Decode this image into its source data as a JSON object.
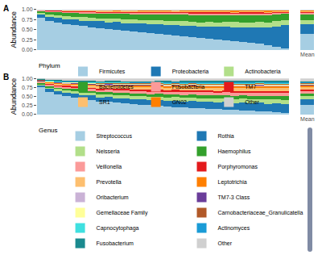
{
  "chart_data": [
    {
      "type": "bar",
      "stacked": true,
      "grid": false,
      "panel_label": "A",
      "y_label": "Abundance",
      "legend_title": "Phylum",
      "categories": [
        null,
        null,
        null,
        null,
        null,
        null,
        null,
        null,
        null,
        null,
        null,
        null,
        null,
        null,
        null,
        null,
        null,
        null,
        null,
        null,
        null,
        null,
        null,
        null,
        null,
        null,
        null,
        null,
        null,
        null,
        "Mean"
      ],
      "ylim": [
        0,
        1
      ],
      "yticks": [
        {
          "value": 0,
          "label": "0.00"
        },
        {
          "value": 0.25,
          "label": "0.25"
        },
        {
          "value": 0.5,
          "label": "0.50"
        },
        {
          "value": 0.75,
          "label": "0.75"
        },
        {
          "value": 1,
          "label": "1.00"
        }
      ],
      "series": [
        {
          "name": "Firmicutes",
          "color": "#a6cee3",
          "values": [
            0.8,
            0.72,
            0.68,
            0.65,
            0.62,
            0.6,
            0.57,
            0.55,
            0.53,
            0.51,
            0.49,
            0.47,
            0.45,
            0.43,
            0.41,
            0.39,
            0.37,
            0.35,
            0.33,
            0.31,
            0.29,
            0.27,
            0.25,
            0.23,
            0.21,
            0.19,
            0.16,
            0.13,
            0.09,
            0.04,
            0.4
          ]
        },
        {
          "name": "Proteobacteria",
          "color": "#1f78b4",
          "values": [
            0.08,
            0.1,
            0.12,
            0.11,
            0.14,
            0.13,
            0.15,
            0.17,
            0.16,
            0.19,
            0.18,
            0.2,
            0.22,
            0.21,
            0.24,
            0.23,
            0.26,
            0.25,
            0.28,
            0.27,
            0.3,
            0.31,
            0.33,
            0.34,
            0.36,
            0.38,
            0.41,
            0.44,
            0.5,
            0.58,
            0.25
          ]
        },
        {
          "name": "Actinobacteria",
          "color": "#b2df8a",
          "values": [
            0.05,
            0.06,
            0.07,
            0.08,
            0.07,
            0.09,
            0.08,
            0.07,
            0.09,
            0.08,
            0.1,
            0.09,
            0.08,
            0.1,
            0.09,
            0.11,
            0.1,
            0.12,
            0.1,
            0.11,
            0.12,
            0.11,
            0.12,
            0.13,
            0.11,
            0.12,
            0.13,
            0.12,
            0.14,
            0.13,
            0.1
          ]
        },
        {
          "name": "Bacteroidetes",
          "color": "#33a02c",
          "values": [
            0.04,
            0.07,
            0.08,
            0.09,
            0.1,
            0.1,
            0.11,
            0.12,
            0.12,
            0.12,
            0.13,
            0.13,
            0.14,
            0.14,
            0.15,
            0.15,
            0.15,
            0.16,
            0.16,
            0.17,
            0.16,
            0.17,
            0.17,
            0.17,
            0.18,
            0.17,
            0.17,
            0.18,
            0.16,
            0.15,
            0.14
          ]
        },
        {
          "name": "Fusobacteria",
          "color": "#fb9a99",
          "values": [
            0.01,
            0.02,
            0.02,
            0.03,
            0.03,
            0.03,
            0.04,
            0.03,
            0.04,
            0.04,
            0.04,
            0.05,
            0.04,
            0.05,
            0.04,
            0.05,
            0.05,
            0.05,
            0.05,
            0.06,
            0.05,
            0.06,
            0.05,
            0.05,
            0.06,
            0.06,
            0.05,
            0.05,
            0.04,
            0.04,
            0.04
          ]
        },
        {
          "name": "TM7",
          "color": "#e31a1c",
          "values": [
            0.01,
            0.01,
            0.01,
            0.01,
            0.01,
            0.02,
            0.02,
            0.02,
            0.02,
            0.02,
            0.02,
            0.02,
            0.02,
            0.02,
            0.02,
            0.02,
            0.03,
            0.02,
            0.03,
            0.03,
            0.03,
            0.03,
            0.03,
            0.02,
            0.03,
            0.03,
            0.03,
            0.02,
            0.02,
            0.02,
            0.02
          ]
        },
        {
          "name": "SR1",
          "color": "#fdbf6f",
          "values": [
            0,
            0.01,
            0.01,
            0.01,
            0.01,
            0.01,
            0.01,
            0.02,
            0.02,
            0.01,
            0.02,
            0.02,
            0.02,
            0.02,
            0.02,
            0.02,
            0.02,
            0.02,
            0.02,
            0.02,
            0.02,
            0.02,
            0.02,
            0.02,
            0.02,
            0.02,
            0.02,
            0.02,
            0.02,
            0.01,
            0.02
          ]
        },
        {
          "name": "GN02",
          "color": "#ff7f00",
          "values": [
            0,
            0,
            0,
            0.01,
            0.01,
            0.01,
            0.01,
            0.01,
            0.01,
            0.01,
            0.01,
            0.01,
            0.01,
            0.01,
            0.01,
            0.01,
            0.01,
            0.01,
            0.01,
            0.01,
            0.01,
            0.01,
            0.01,
            0.02,
            0.01,
            0.01,
            0.01,
            0.02,
            0.01,
            0.01,
            0.01
          ]
        },
        {
          "name": "Other",
          "color": "#d0d0d0",
          "values": [
            0.01,
            0.01,
            0.01,
            0.01,
            0.01,
            0.01,
            0.01,
            0.01,
            0.01,
            0.02,
            0.01,
            0.01,
            0.02,
            0.02,
            0.02,
            0.02,
            0.01,
            0.02,
            0.02,
            0.02,
            0.02,
            0.02,
            0.02,
            0.02,
            0.02,
            0.02,
            0.02,
            0.02,
            0.02,
            0.02,
            0.02
          ]
        }
      ]
    },
    {
      "type": "bar",
      "stacked": true,
      "grid": false,
      "panel_label": "B",
      "y_label": "Abundance",
      "legend_title": "Genus",
      "categories": [
        null,
        null,
        null,
        null,
        null,
        null,
        null,
        null,
        null,
        null,
        null,
        null,
        null,
        null,
        null,
        null,
        null,
        null,
        null,
        null,
        null,
        null,
        null,
        null,
        null,
        null,
        null,
        null,
        null,
        null,
        "Mean"
      ],
      "ylim": [
        0,
        1
      ],
      "yticks": [
        {
          "value": 0,
          "label": "0.00"
        },
        {
          "value": 0.25,
          "label": "0.25"
        },
        {
          "value": 0.5,
          "label": "0.50"
        },
        {
          "value": 0.75,
          "label": "0.75"
        },
        {
          "value": 1,
          "label": "1.00"
        }
      ],
      "series": [
        {
          "name": "Streptococcus",
          "color": "#a6cee3",
          "values": [
            0.75,
            0.62,
            0.55,
            0.5,
            0.46,
            0.42,
            0.39,
            0.36,
            0.34,
            0.32,
            0.3,
            0.28,
            0.26,
            0.25,
            0.23,
            0.22,
            0.2,
            0.19,
            0.18,
            0.17,
            0.15,
            0.14,
            0.13,
            0.12,
            0.11,
            0.1,
            0.09,
            0.08,
            0.06,
            0.04,
            0.26
          ]
        },
        {
          "name": "Rothia",
          "color": "#1f78b4",
          "values": [
            0.05,
            0.08,
            0.1,
            0.09,
            0.12,
            0.1,
            0.13,
            0.11,
            0.14,
            0.12,
            0.15,
            0.13,
            0.16,
            0.14,
            0.17,
            0.15,
            0.18,
            0.16,
            0.19,
            0.17,
            0.2,
            0.18,
            0.21,
            0.19,
            0.22,
            0.2,
            0.23,
            0.21,
            0.24,
            0.25,
            0.16
          ]
        },
        {
          "name": "Neisseria",
          "color": "#b2df8a",
          "values": [
            0.04,
            0.05,
            0.06,
            0.07,
            0.06,
            0.08,
            0.07,
            0.09,
            0.08,
            0.09,
            0.09,
            0.1,
            0.09,
            0.1,
            0.09,
            0.1,
            0.1,
            0.11,
            0.1,
            0.11,
            0.1,
            0.11,
            0.1,
            0.11,
            0.11,
            0.11,
            0.1,
            0.12,
            0.11,
            0.11,
            0.09
          ]
        },
        {
          "name": "Haemophilus",
          "color": "#33a02c",
          "values": [
            0.03,
            0.04,
            0.04,
            0.05,
            0.06,
            0.06,
            0.06,
            0.06,
            0.07,
            0.07,
            0.06,
            0.07,
            0.07,
            0.07,
            0.08,
            0.08,
            0.07,
            0.08,
            0.08,
            0.08,
            0.09,
            0.09,
            0.08,
            0.09,
            0.08,
            0.09,
            0.09,
            0.09,
            0.09,
            0.1,
            0.07
          ]
        },
        {
          "name": "Veillonella",
          "color": "#fb9a99",
          "values": [
            0.02,
            0.04,
            0.04,
            0.05,
            0.05,
            0.06,
            0.06,
            0.06,
            0.06,
            0.07,
            0.07,
            0.07,
            0.07,
            0.08,
            0.07,
            0.08,
            0.08,
            0.08,
            0.08,
            0.08,
            0.08,
            0.08,
            0.09,
            0.09,
            0.08,
            0.09,
            0.09,
            0.09,
            0.09,
            0.09,
            0.07
          ]
        },
        {
          "name": "Porphyromonas",
          "color": "#e31a1c",
          "values": [
            0.01,
            0.02,
            0.02,
            0.03,
            0.03,
            0.03,
            0.03,
            0.04,
            0.03,
            0.04,
            0.04,
            0.04,
            0.04,
            0.04,
            0.04,
            0.04,
            0.05,
            0.05,
            0.04,
            0.05,
            0.05,
            0.05,
            0.05,
            0.05,
            0.05,
            0.06,
            0.05,
            0.05,
            0.05,
            0.05,
            0.04
          ]
        },
        {
          "name": "Prevotella",
          "color": "#fdbf6f",
          "values": [
            0.02,
            0.03,
            0.04,
            0.05,
            0.05,
            0.05,
            0.06,
            0.06,
            0.07,
            0.07,
            0.07,
            0.07,
            0.08,
            0.08,
            0.08,
            0.08,
            0.08,
            0.08,
            0.09,
            0.09,
            0.08,
            0.09,
            0.09,
            0.09,
            0.09,
            0.09,
            0.09,
            0.09,
            0.1,
            0.1,
            0.07
          ]
        },
        {
          "name": "Leptotrichia",
          "color": "#ff7f00",
          "values": [
            0.01,
            0.01,
            0.02,
            0.02,
            0.02,
            0.03,
            0.03,
            0.03,
            0.03,
            0.03,
            0.03,
            0.04,
            0.03,
            0.04,
            0.04,
            0.04,
            0.04,
            0.04,
            0.04,
            0.04,
            0.04,
            0.04,
            0.04,
            0.04,
            0.05,
            0.05,
            0.05,
            0.05,
            0.05,
            0.05,
            0.04
          ]
        },
        {
          "name": "Oribacterium",
          "color": "#cab2d6",
          "values": [
            0,
            0.01,
            0.01,
            0.01,
            0.01,
            0.01,
            0.01,
            0.01,
            0.01,
            0.01,
            0.01,
            0.01,
            0.01,
            0.01,
            0.01,
            0.01,
            0.01,
            0.01,
            0.01,
            0.01,
            0.01,
            0.02,
            0.01,
            0.02,
            0.01,
            0.01,
            0.02,
            0.02,
            0.01,
            0.01,
            0.01
          ]
        },
        {
          "name": "TM7-3 Class",
          "color": "#6a3d9a",
          "values": [
            0.01,
            0.01,
            0.01,
            0.01,
            0.02,
            0.02,
            0.01,
            0.02,
            0.02,
            0.02,
            0.02,
            0.02,
            0.02,
            0.02,
            0.02,
            0.02,
            0.02,
            0.02,
            0.02,
            0.02,
            0.02,
            0.02,
            0.02,
            0.02,
            0.02,
            0.02,
            0.02,
            0.02,
            0.02,
            0.02,
            0.02
          ]
        },
        {
          "name": "Gemellaceae Family",
          "color": "#ffff99",
          "values": [
            0.01,
            0.01,
            0.01,
            0.01,
            0.01,
            0.01,
            0.02,
            0.02,
            0.01,
            0.02,
            0.02,
            0.02,
            0.02,
            0.02,
            0.02,
            0.02,
            0.02,
            0.02,
            0.02,
            0.02,
            0.02,
            0.02,
            0.02,
            0.02,
            0.02,
            0.02,
            0.02,
            0.02,
            0.02,
            0.02,
            0.02
          ]
        },
        {
          "name": "Carnobacteriaceae_Granulicatella",
          "color": "#b15928",
          "values": [
            0.01,
            0.01,
            0.01,
            0.01,
            0.01,
            0.02,
            0.01,
            0.02,
            0.02,
            0.02,
            0.02,
            0.02,
            0.02,
            0.02,
            0.02,
            0.02,
            0.02,
            0.02,
            0.02,
            0.02,
            0.02,
            0.02,
            0.02,
            0.02,
            0.02,
            0.02,
            0.02,
            0.02,
            0.02,
            0.02,
            0.02
          ]
        },
        {
          "name": "Capnocytophaga",
          "color": "#3fe0e0",
          "values": [
            0,
            0.01,
            0.01,
            0.01,
            0.01,
            0.01,
            0.01,
            0.01,
            0.01,
            0.01,
            0.01,
            0.01,
            0.01,
            0.01,
            0.02,
            0.02,
            0.01,
            0.02,
            0.01,
            0.02,
            0.02,
            0.02,
            0.02,
            0.02,
            0.02,
            0.02,
            0.02,
            0.02,
            0.02,
            0.02,
            0.01
          ]
        },
        {
          "name": "Actinomyces",
          "color": "#1a9bd6",
          "values": [
            0.01,
            0.01,
            0.01,
            0.01,
            0.01,
            0.01,
            0.02,
            0.01,
            0.02,
            0.02,
            0.01,
            0.02,
            0.02,
            0.02,
            0.02,
            0.02,
            0.02,
            0.02,
            0.02,
            0.02,
            0.02,
            0.02,
            0.02,
            0.02,
            0.02,
            0.02,
            0.02,
            0.02,
            0.02,
            0.02,
            0.02
          ]
        },
        {
          "name": "Fusobacterium",
          "color": "#1b8a8f",
          "values": [
            0.01,
            0.01,
            0.02,
            0.02,
            0.02,
            0.02,
            0.02,
            0.02,
            0.02,
            0.02,
            0.02,
            0.02,
            0.02,
            0.02,
            0.02,
            0.03,
            0.02,
            0.03,
            0.03,
            0.03,
            0.03,
            0.03,
            0.03,
            0.03,
            0.03,
            0.03,
            0.03,
            0.03,
            0.03,
            0.03,
            0.02
          ]
        },
        {
          "name": "Other",
          "color": "#d0d0d0",
          "values": [
            0.02,
            0.04,
            0.05,
            0.06,
            0.06,
            0.07,
            0.07,
            0.08,
            0.07,
            0.07,
            0.08,
            0.08,
            0.08,
            0.08,
            0.07,
            0.07,
            0.08,
            0.07,
            0.07,
            0.07,
            0.07,
            0.07,
            0.07,
            0.07,
            0.07,
            0.07,
            0.06,
            0.07,
            0.07,
            0.07,
            0.08
          ]
        }
      ]
    }
  ]
}
